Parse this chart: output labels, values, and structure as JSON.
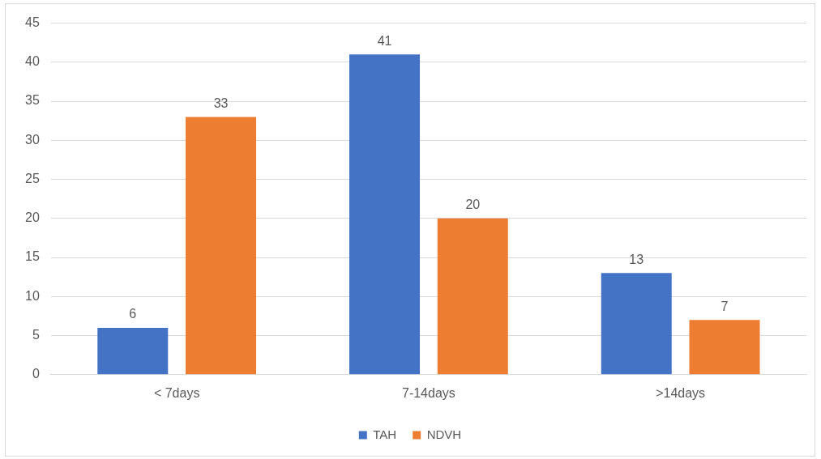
{
  "chart_data": {
    "type": "bar",
    "categories": [
      "< 7days",
      "7-14days",
      ">14days"
    ],
    "series": [
      {
        "name": "TAH",
        "color": "#4472c4",
        "values": [
          6,
          41,
          13
        ]
      },
      {
        "name": "NDVH",
        "color": "#ed7d31",
        "values": [
          33,
          20,
          7
        ]
      }
    ],
    "ylim": [
      0,
      45
    ],
    "yticks": [
      0,
      5,
      10,
      15,
      20,
      25,
      30,
      35,
      40,
      45
    ],
    "grid": "y",
    "legend": "bottom",
    "data_labels": true
  }
}
